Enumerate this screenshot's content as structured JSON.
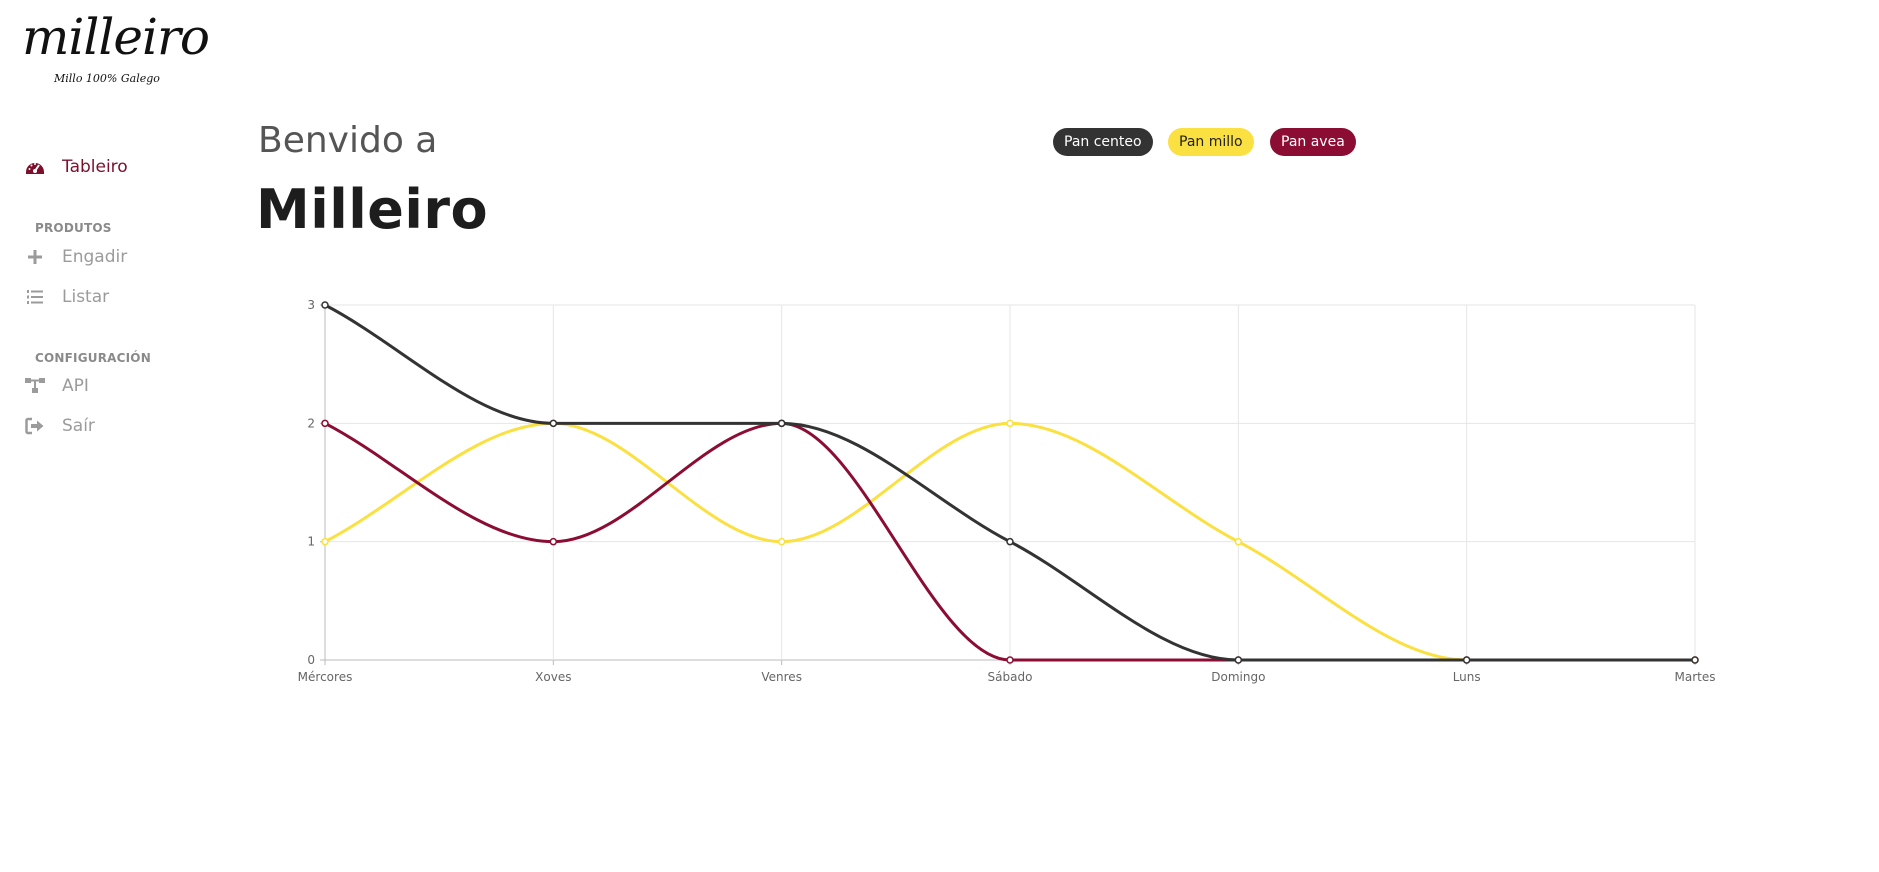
{
  "app": {
    "logo_text": "milleiro",
    "logo_tagline": "Millo 100% Galego"
  },
  "sidebar": {
    "items": [
      {
        "label": "Tableiro",
        "icon": "dashboard-gauge-icon",
        "active": true
      }
    ],
    "sections": [
      {
        "title": "PRODUTOS",
        "items": [
          {
            "label": "Engadir",
            "icon": "plus-icon"
          },
          {
            "label": "Listar",
            "icon": "list-icon"
          }
        ]
      },
      {
        "title": "CONFIGURACIÓN",
        "items": [
          {
            "label": "API",
            "icon": "sitemap-icon"
          },
          {
            "label": "Saír",
            "icon": "sign-out-icon"
          }
        ]
      }
    ]
  },
  "header": {
    "greeting": "Benvido a",
    "title": "Milleiro"
  },
  "legend": [
    {
      "label": "Pan centeo",
      "color": "#333333"
    },
    {
      "label": "Pan millo",
      "color": "#fbe041"
    },
    {
      "label": "Pan avea",
      "color": "#8c0d33"
    }
  ],
  "chart_data": {
    "type": "line",
    "categories": [
      "Mércores",
      "Xoves",
      "Venres",
      "Sábado",
      "Domingo",
      "Luns",
      "Martes"
    ],
    "series": [
      {
        "name": "Pan centeo",
        "color": "#333333",
        "values": [
          3,
          2,
          2,
          1,
          0,
          0,
          0
        ]
      },
      {
        "name": "Pan millo",
        "color": "#fbe041",
        "values": [
          1,
          2,
          1,
          2,
          1,
          0,
          0
        ]
      },
      {
        "name": "Pan avea",
        "color": "#8c0d33",
        "values": [
          2,
          1,
          2,
          0,
          0,
          0,
          0
        ]
      }
    ],
    "ylim": [
      0,
      3
    ],
    "yticks": [
      0,
      1,
      2,
      3
    ],
    "grid": true,
    "legend_position": "top"
  }
}
